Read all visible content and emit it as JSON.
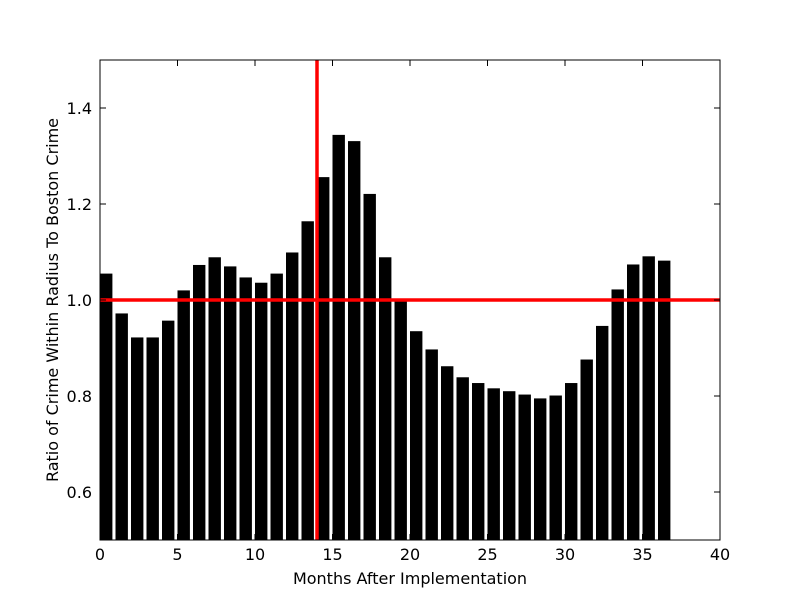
{
  "chart_data": {
    "type": "bar",
    "title": "",
    "xlabel": "Months After Implementation",
    "ylabel": "Ratio of Crime Within Radius To Boston Crime",
    "xlim": [
      0,
      40
    ],
    "ylim": [
      0.5,
      1.5
    ],
    "xticks": [
      0,
      5,
      10,
      15,
      20,
      25,
      30,
      35,
      40
    ],
    "xtick_labels": [
      "0",
      "5",
      "10",
      "15",
      "20",
      "25",
      "30",
      "35",
      "40"
    ],
    "yticks": [
      0.6,
      0.8,
      1.0,
      1.2,
      1.4
    ],
    "ytick_labels": [
      "0.6",
      "0.8",
      "1.0",
      "1.2",
      "1.4"
    ],
    "grid": false,
    "bar_color": "#000000",
    "bar_width": 0.8,
    "x": [
      0,
      1,
      2,
      3,
      4,
      5,
      6,
      7,
      8,
      9,
      10,
      11,
      12,
      13,
      14,
      15,
      16,
      17,
      18,
      19,
      20,
      21,
      22,
      23,
      24,
      25,
      26,
      27,
      28,
      29,
      30,
      31,
      32,
      33,
      34,
      35,
      36
    ],
    "values": [
      1.055,
      0.972,
      0.922,
      0.922,
      0.957,
      1.02,
      1.073,
      1.089,
      1.07,
      1.047,
      1.036,
      1.055,
      1.099,
      1.164,
      1.256,
      1.344,
      1.331,
      1.221,
      1.089,
      0.998,
      0.935,
      0.897,
      0.862,
      0.839,
      0.827,
      0.816,
      0.81,
      0.803,
      0.795,
      0.801,
      0.827,
      0.876,
      0.946,
      1.022,
      1.074,
      1.091,
      1.082
    ],
    "reference_lines": [
      {
        "orientation": "vertical",
        "value": 14,
        "color": "#ff0000"
      },
      {
        "orientation": "horizontal",
        "value": 1.0,
        "color": "#ff0000"
      }
    ]
  }
}
